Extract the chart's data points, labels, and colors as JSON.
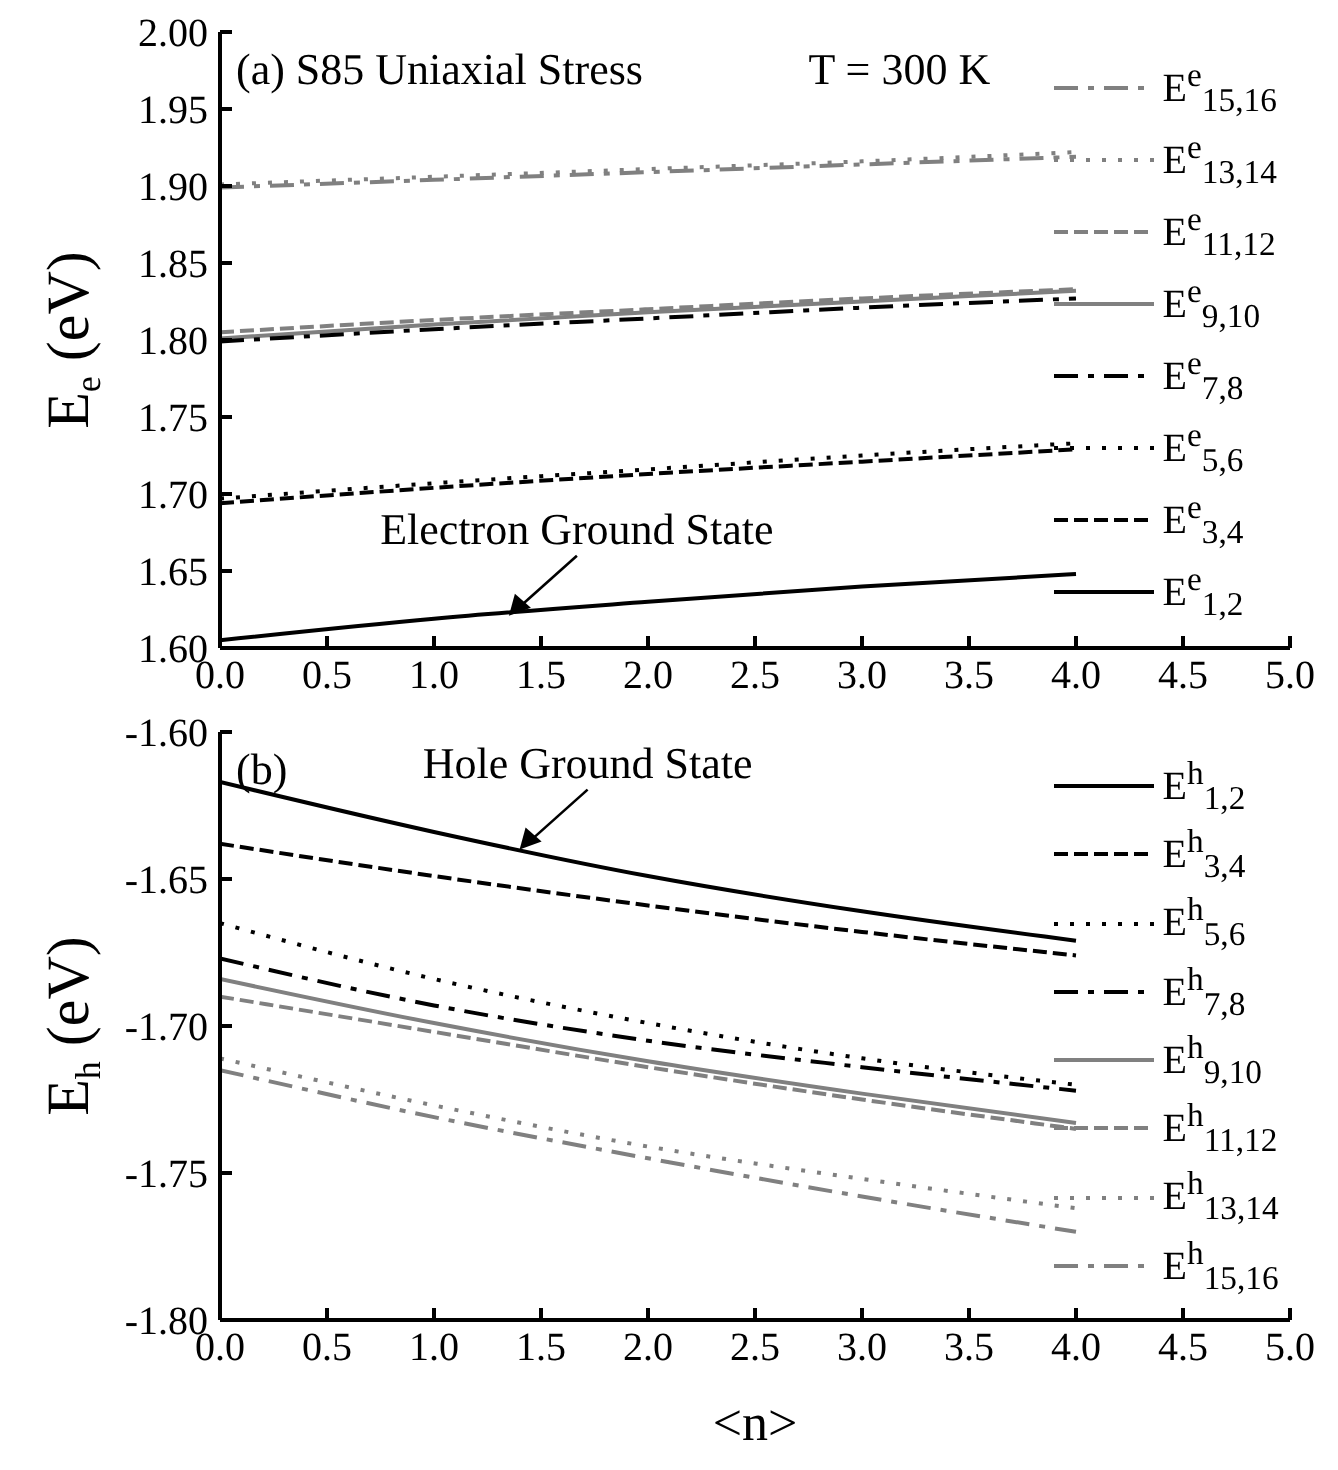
{
  "chart_data": [
    {
      "type": "line",
      "title": "(a) S85 Uniaxial Stress",
      "ylabel": "E$_{e}$ (eV)",
      "annotations": [
        "T = 300 K",
        {
          "text": "Electron Ground State",
          "x": 1.35,
          "y": 1.621
        }
      ],
      "x": [
        0,
        1,
        2,
        3,
        4
      ],
      "xlim": [
        0,
        5
      ],
      "xticks": [
        {
          "value": 0,
          "label": "0.0"
        },
        {
          "value": 0.5,
          "label": "0.5"
        },
        {
          "value": 1,
          "label": "1.0"
        },
        {
          "value": 1.5,
          "label": "1.5"
        },
        {
          "value": 2,
          "label": "2.0"
        },
        {
          "value": 2.5,
          "label": "2.5"
        },
        {
          "value": 3,
          "label": "3.0"
        },
        {
          "value": 3.5,
          "label": "3.5"
        },
        {
          "value": 4,
          "label": "4.0"
        },
        {
          "value": 4.5,
          "label": "4.5"
        },
        {
          "value": 5,
          "label": "5.0"
        }
      ],
      "ylim": [
        1.6,
        2.0
      ],
      "yticks": [
        {
          "value": 1.6,
          "label": "1.60"
        },
        1.65,
        {
          "value": 1.7,
          "label": "1.70"
        },
        1.75,
        {
          "value": 1.8,
          "label": "1.80"
        },
        1.85,
        {
          "value": 1.9,
          "label": "1.90"
        },
        1.95,
        {
          "value": 2.0,
          "label": "2.00"
        }
      ],
      "legend": "right",
      "marker": "none",
      "series": [
        {
          "name": "E$^{e}$$_{15,16}$",
          "color": "#808080",
          "line_style": "dashdot",
          "values": [
            1.899,
            1.904,
            1.909,
            1.914,
            1.919
          ]
        },
        {
          "name": "E$^{e}$$_{13,14}$",
          "color": "#808080",
          "line_style": "dotted",
          "values": [
            1.901,
            1.906,
            1.911,
            1.916,
            1.922
          ]
        },
        {
          "name": "E$^{e}$$_{11,12}$",
          "color": "#808080",
          "line_style": "dashed",
          "values": [
            1.805,
            1.813,
            1.82,
            1.827,
            1.833
          ]
        },
        {
          "name": "E$^{e}$$_{9,10}$",
          "color": "#808080",
          "line_style": "solid",
          "values": [
            1.801,
            1.81,
            1.818,
            1.825,
            1.832
          ]
        },
        {
          "name": "E$^{e}$$_{7,8}$",
          "color": "#000000",
          "line_style": "dashdot",
          "values": [
            1.799,
            1.807,
            1.814,
            1.821,
            1.827
          ]
        },
        {
          "name": "E$^{e}$$_{5,6}$",
          "color": "#000000",
          "line_style": "dotted",
          "values": [
            1.697,
            1.707,
            1.716,
            1.725,
            1.733
          ]
        },
        {
          "name": "E$^{e}$$_{3,4}$",
          "color": "#000000",
          "line_style": "dashed",
          "values": [
            1.694,
            1.704,
            1.713,
            1.721,
            1.729
          ]
        },
        {
          "name": "E$^{e}$$_{1,2}$",
          "color": "#000000",
          "line_style": "solid",
          "values": [
            1.605,
            1.619,
            1.63,
            1.64,
            1.648
          ]
        }
      ]
    },
    {
      "type": "line",
      "title": "(b)",
      "ylabel": "E$_{h}$ (eV)",
      "xlabel": "<n>",
      "annotations": [
        {
          "text": "Hole Ground State",
          "x": 1.4,
          "y": -1.64
        }
      ],
      "x": [
        0,
        1,
        2,
        3,
        4
      ],
      "xlim": [
        0,
        5
      ],
      "xticks": [
        {
          "value": 0,
          "label": "0.0"
        },
        {
          "value": 0.5,
          "label": "0.5"
        },
        {
          "value": 1,
          "label": "1.0"
        },
        {
          "value": 1.5,
          "label": "1.5"
        },
        {
          "value": 2,
          "label": "2.0"
        },
        {
          "value": 2.5,
          "label": "2.5"
        },
        {
          "value": 3,
          "label": "3.0"
        },
        {
          "value": 3.5,
          "label": "3.5"
        },
        {
          "value": 4,
          "label": "4.0"
        },
        {
          "value": 4.5,
          "label": "4.5"
        },
        {
          "value": 5,
          "label": "5.0"
        }
      ],
      "ylim": [
        -1.8,
        -1.6
      ],
      "yticks": [
        {
          "value": -1.8,
          "label": "-1.80"
        },
        -1.75,
        {
          "value": -1.7,
          "label": "-1.70"
        },
        -1.65,
        {
          "value": -1.6,
          "label": "-1.60"
        }
      ],
      "legend": "right",
      "marker": "none",
      "series": [
        {
          "name": "E$^{h}$$_{1,2}$",
          "color": "#000000",
          "line_style": "solid",
          "values": [
            -1.617,
            -1.634,
            -1.649,
            -1.661,
            -1.671
          ]
        },
        {
          "name": "E$^{h}$$_{3,4}$",
          "color": "#000000",
          "line_style": "dashed",
          "values": [
            -1.638,
            -1.649,
            -1.659,
            -1.668,
            -1.676
          ]
        },
        {
          "name": "E$^{h}$$_{5,6}$",
          "color": "#000000",
          "line_style": "dotted",
          "values": [
            -1.665,
            -1.684,
            -1.699,
            -1.711,
            -1.72
          ]
        },
        {
          "name": "E$^{h}$$_{7,8}$",
          "color": "#000000",
          "line_style": "dashdot",
          "values": [
            -1.677,
            -1.693,
            -1.705,
            -1.714,
            -1.722
          ]
        },
        {
          "name": "E$^{h}$$_{9,10}$",
          "color": "#808080",
          "line_style": "solid",
          "values": [
            -1.684,
            -1.699,
            -1.712,
            -1.723,
            -1.733
          ]
        },
        {
          "name": "E$^{h}$$_{11,12}$",
          "color": "#808080",
          "line_style": "dashed",
          "values": [
            -1.69,
            -1.702,
            -1.714,
            -1.725,
            -1.735
          ]
        },
        {
          "name": "E$^{h}$$_{13,14}$",
          "color": "#808080",
          "line_style": "dotted",
          "values": [
            -1.711,
            -1.727,
            -1.741,
            -1.752,
            -1.762
          ]
        },
        {
          "name": "E$^{h}$$_{15,16}$",
          "color": "#808080",
          "line_style": "dashdot",
          "values": [
            -1.715,
            -1.731,
            -1.745,
            -1.758,
            -1.77
          ]
        }
      ]
    }
  ]
}
